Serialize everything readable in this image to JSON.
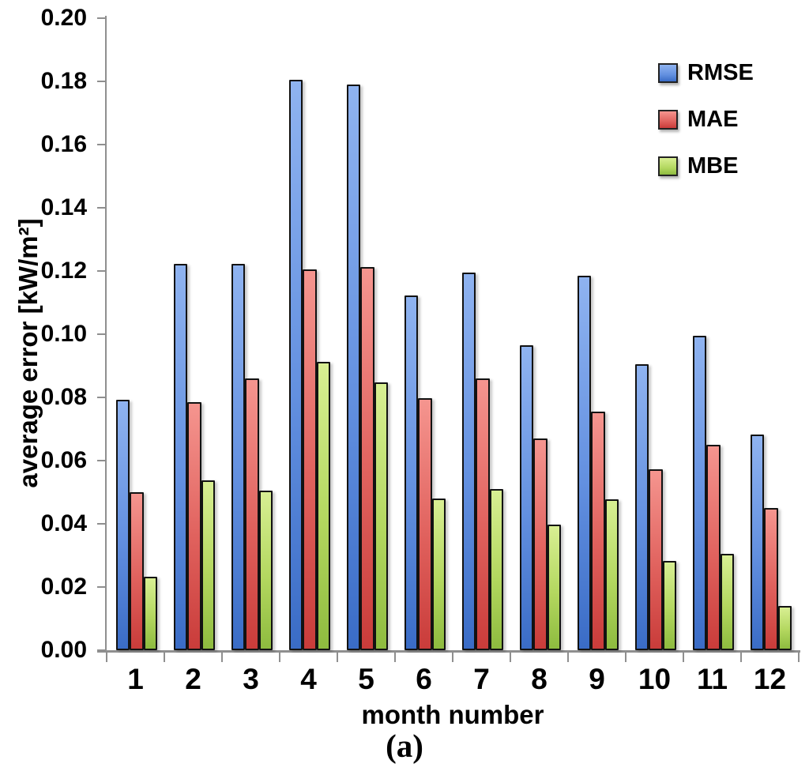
{
  "figure": {
    "caption": "(a)"
  },
  "chart_data": {
    "type": "bar",
    "title": "",
    "xlabel": "month number",
    "ylabel": "average error [kW/m²]",
    "categories": [
      "1",
      "2",
      "3",
      "4",
      "5",
      "6",
      "7",
      "8",
      "9",
      "10",
      "11",
      "12"
    ],
    "series": [
      {
        "name": "RMSE",
        "values": [
          0.0793,
          0.1223,
          0.1223,
          0.1805,
          0.179,
          0.1123,
          0.1195,
          0.0965,
          0.1185,
          0.0905,
          0.0995,
          0.0683
        ],
        "color_top": "#8FB3F0",
        "color_mid": "#6390E0",
        "color_bottom": "#3A6CC6"
      },
      {
        "name": "MAE",
        "values": [
          0.05,
          0.0785,
          0.086,
          0.1205,
          0.1213,
          0.0798,
          0.086,
          0.067,
          0.0755,
          0.0573,
          0.065,
          0.045
        ],
        "color_top": "#F5958F",
        "color_mid": "#E0615D",
        "color_bottom": "#C93C3A"
      },
      {
        "name": "MBE",
        "values": [
          0.0233,
          0.0538,
          0.0505,
          0.0913,
          0.0848,
          0.048,
          0.051,
          0.0398,
          0.0478,
          0.0283,
          0.0305,
          0.014
        ],
        "color_top": "#D8EF93",
        "color_mid": "#B3D75F",
        "color_bottom": "#8EBB3F"
      }
    ],
    "ylim": [
      0.0,
      0.2
    ],
    "ytick_labels": [
      "0.20",
      "0.18",
      "0.16",
      "0.14",
      "0.12",
      "0.10",
      "0.08",
      "0.06",
      "0.04",
      "0.02",
      "0.00"
    ],
    "grid": false,
    "legend_position": "top-right",
    "axis_color": "#8f8f8f",
    "outline_color": "#121212"
  },
  "layout_text": {}
}
